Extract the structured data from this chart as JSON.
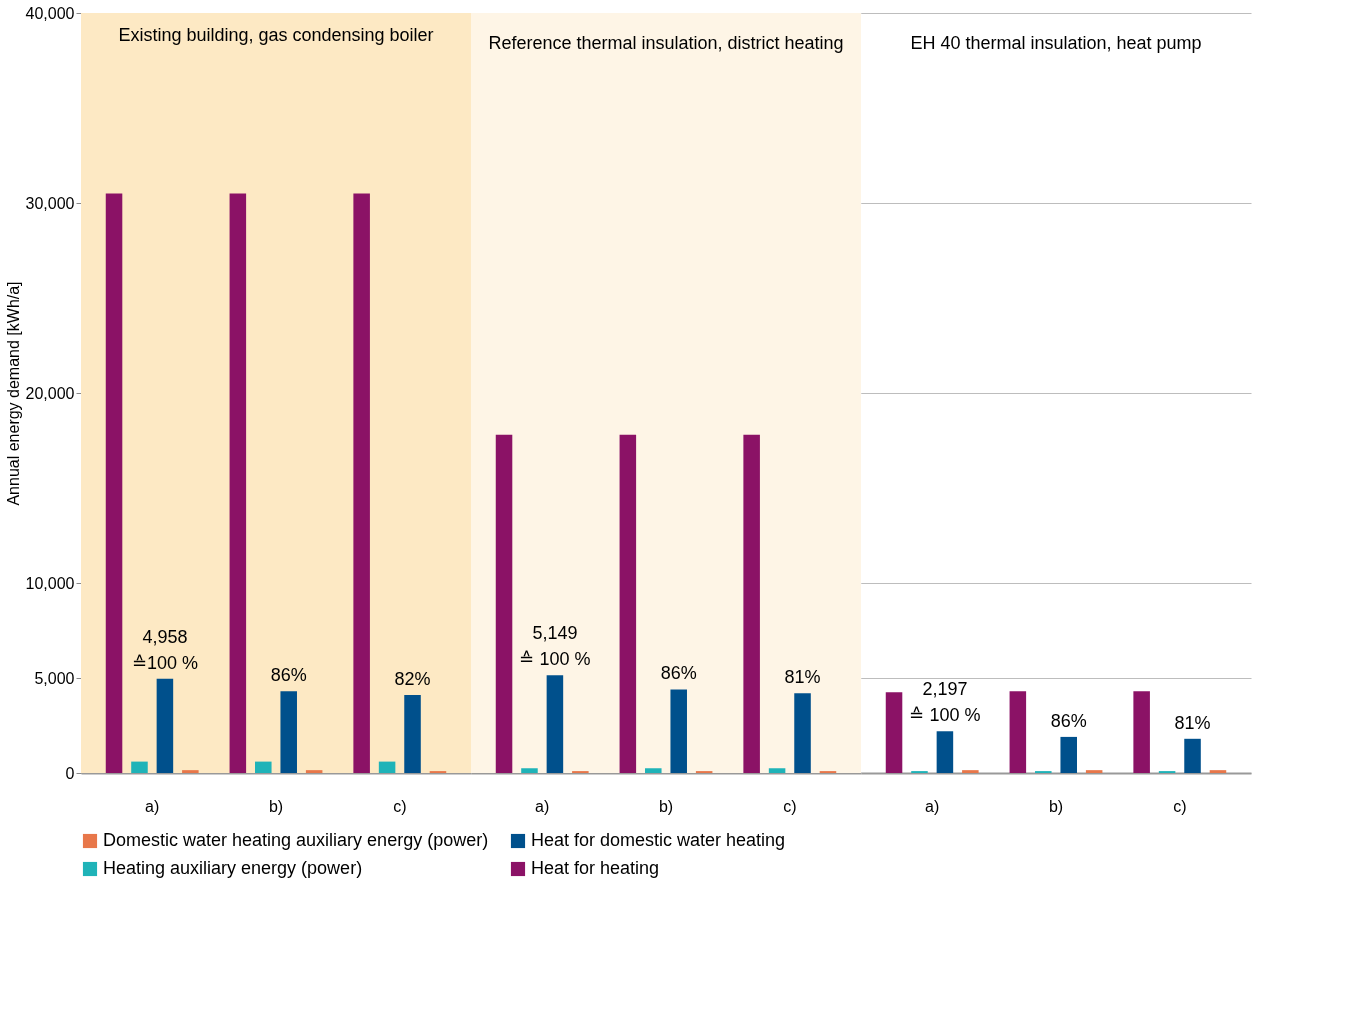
{
  "chart_data": [
    {
      "type": "bar",
      "title": "Existing building, gas condensing boiler",
      "ylabel": "Annual energy demand [kWh/a]",
      "categories": [
        "a)",
        "b)",
        "c)"
      ],
      "ylim": [
        0,
        40000
      ],
      "yticks": [
        0,
        {
          "value": 5000,
          "label": "5,000"
        },
        {
          "value": 10000,
          "label": "10,000"
        },
        {
          "value": 20000,
          "label": "20,000"
        },
        {
          "value": 30000,
          "label": "30,000"
        },
        {
          "value": 40000,
          "label": "40,000"
        }
      ],
      "grid": "y",
      "legend": "bottom",
      "bands": [
        {
          "axis": "y",
          "from": 0,
          "to": 40000,
          "color": "#fde9c4"
        }
      ],
      "annotations": [
        {
          "text": "86%",
          "x": "b)",
          "y": 4300
        },
        {
          "text": "82%",
          "x": "c)",
          "y": 4100
        }
      ],
      "series": [
        {
          "name": "Heat for heating",
          "color": "#8b1266",
          "values": [
            30500,
            30500,
            30500
          ]
        },
        {
          "name": "Heating auxiliary energy (power)",
          "color": "#1fb3b8",
          "values": [
            600,
            600,
            600
          ]
        },
        {
          "name": "Heat for domestic water heating",
          "color": "#00508c",
          "values": [
            4958,
            4300,
            4100
          ],
          "value_labels": [
            "4,958\n≙100 %",
            null,
            null
          ]
        },
        {
          "name": "Domestic water heating auxiliary energy (power)",
          "color": "#e8774a",
          "values": [
            150,
            150,
            100
          ]
        }
      ]
    },
    {
      "type": "bar",
      "title": "Reference thermal insulation, district heating",
      "categories": [
        "a)",
        "b)",
        "c)"
      ],
      "ylim": [
        0,
        40000
      ],
      "grid": "y",
      "tick_labels": "x",
      "bands": [
        {
          "axis": "y",
          "from": 0,
          "to": 40000,
          "color": "#fef5e6"
        }
      ],
      "yticks": [
        0,
        5000,
        10000,
        20000,
        30000,
        40000
      ],
      "annotations": [
        {
          "text": "86%",
          "x": "b)",
          "y": 4400
        },
        {
          "text": "81%",
          "x": "c)",
          "y": 4200
        }
      ],
      "series": [
        {
          "name": "Heat for heating",
          "color": "#8b1266",
          "values": [
            17800,
            17800,
            17800
          ]
        },
        {
          "name": "Heating auxiliary energy (power)",
          "color": "#1fb3b8",
          "values": [
            250,
            250,
            250
          ]
        },
        {
          "name": "Heat for domestic water heating",
          "color": "#00508c",
          "values": [
            5149,
            4400,
            4200
          ],
          "value_labels": [
            "5,149\n≙ 100 %",
            null,
            null
          ]
        },
        {
          "name": "Domestic water heating auxiliary energy (power)",
          "color": "#e8774a",
          "values": [
            100,
            100,
            100
          ]
        }
      ]
    },
    {
      "type": "bar",
      "title": "EH 40 thermal insulation, heat pump",
      "categories": [
        "a)",
        "b)",
        "c)"
      ],
      "ylim": [
        0,
        40000
      ],
      "yticks": [
        0,
        5000,
        10000,
        20000,
        30000,
        40000
      ],
      "grid": "y",
      "tick_labels": "x",
      "annotations": [
        {
          "text": "86%",
          "x": "b)",
          "y": 1900
        },
        {
          "text": "81%",
          "x": "c)",
          "y": 1800
        }
      ],
      "series": [
        {
          "name": "Heat for heating",
          "color": "#8b1266",
          "values": [
            4250,
            4300,
            4300
          ]
        },
        {
          "name": "Heating auxiliary energy (power)",
          "color": "#1fb3b8",
          "values": [
            100,
            100,
            100
          ]
        },
        {
          "name": "Heat for domestic water heating",
          "color": "#00508c",
          "values": [
            2197,
            1900,
            1800
          ],
          "value_labels": [
            "2,197\n≙ 100 %",
            null,
            null
          ]
        },
        {
          "name": "Domestic water heating auxiliary energy (power)",
          "color": "#e8774a",
          "values": [
            150,
            150,
            150
          ]
        }
      ]
    }
  ]
}
